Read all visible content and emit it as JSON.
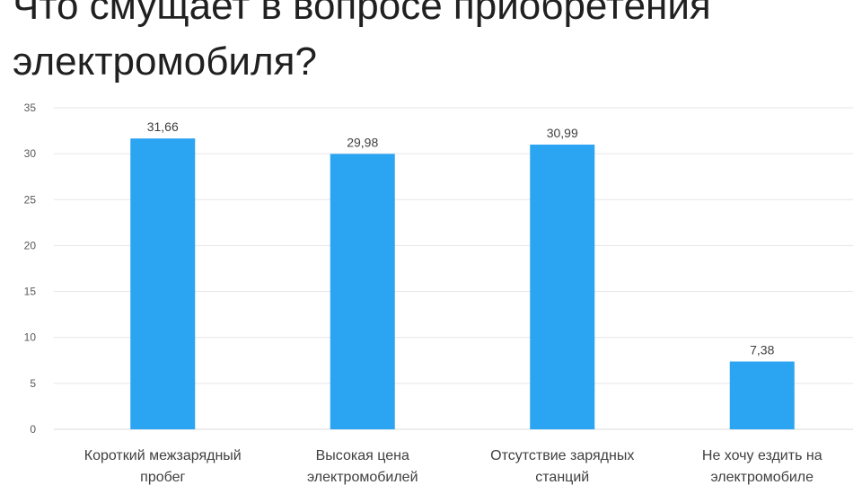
{
  "slide": {
    "title": "Что смущает в вопросе приобретения электромобиля?"
  },
  "chart_data": {
    "type": "bar",
    "title": "",
    "xlabel": "",
    "ylabel": "",
    "categories": [
      [
        "Короткий межзарядный",
        "пробег"
      ],
      [
        "Высокая цена",
        "электромобилей"
      ],
      [
        "Отсутствие зарядных",
        "станций"
      ],
      [
        "Не хочу ездить на",
        "электромобиле"
      ]
    ],
    "values": [
      31.66,
      29.98,
      30.99,
      7.38
    ],
    "data_labels": [
      "31,66",
      "29,98",
      "30,99",
      "7,38"
    ],
    "y_ticks": [
      0,
      5,
      10,
      15,
      20,
      25,
      30,
      35
    ],
    "ylim": [
      0,
      35
    ],
    "grid": true,
    "legend": "none",
    "colors": {
      "bar": "#2ba4f2",
      "grid": "#e6e6e6",
      "axis": "#d9d9d9"
    }
  }
}
